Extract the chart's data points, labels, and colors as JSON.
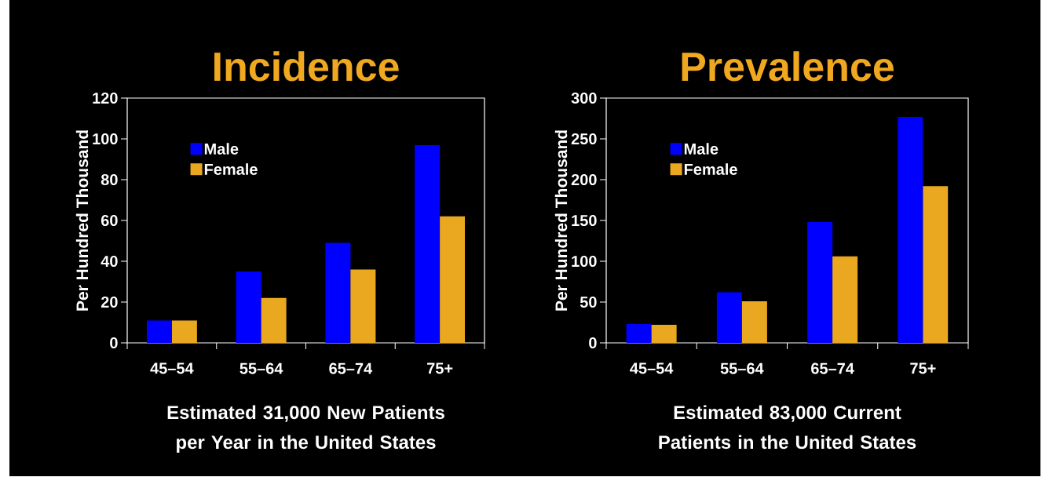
{
  "chart_data": [
    {
      "type": "bar",
      "title": "Incidence",
      "ylabel": "Per Hundred Thousand",
      "xlabel": "Estimated 31,000 New Patients per Year in the United States",
      "categories": [
        "45–54",
        "55–64",
        "65–74",
        "75+"
      ],
      "series": [
        {
          "name": "Male",
          "color": "#0000ff",
          "values": [
            11,
            35,
            49,
            97
          ]
        },
        {
          "name": "Female",
          "color": "#eaa820",
          "values": [
            11,
            22,
            36,
            62
          ]
        }
      ],
      "ylim": [
        0,
        120
      ],
      "yticks": [
        0,
        20,
        40,
        60,
        80,
        100,
        120
      ],
      "legend": "top left"
    },
    {
      "type": "bar",
      "title": "Prevalence",
      "ylabel": "Per Hundred Thousand",
      "xlabel": "Estimated 83,000 Current Patients in the United States",
      "categories": [
        "45–54",
        "55–64",
        "65–74",
        "75+"
      ],
      "series": [
        {
          "name": "Male",
          "color": "#0000ff",
          "values": [
            23,
            62,
            148,
            277
          ]
        },
        {
          "name": "Female",
          "color": "#eaa820",
          "values": [
            22,
            51,
            106,
            192
          ]
        }
      ],
      "ylim": [
        0,
        300
      ],
      "yticks": [
        0,
        50,
        100,
        150,
        200,
        250,
        300
      ],
      "legend": "top left"
    }
  ]
}
